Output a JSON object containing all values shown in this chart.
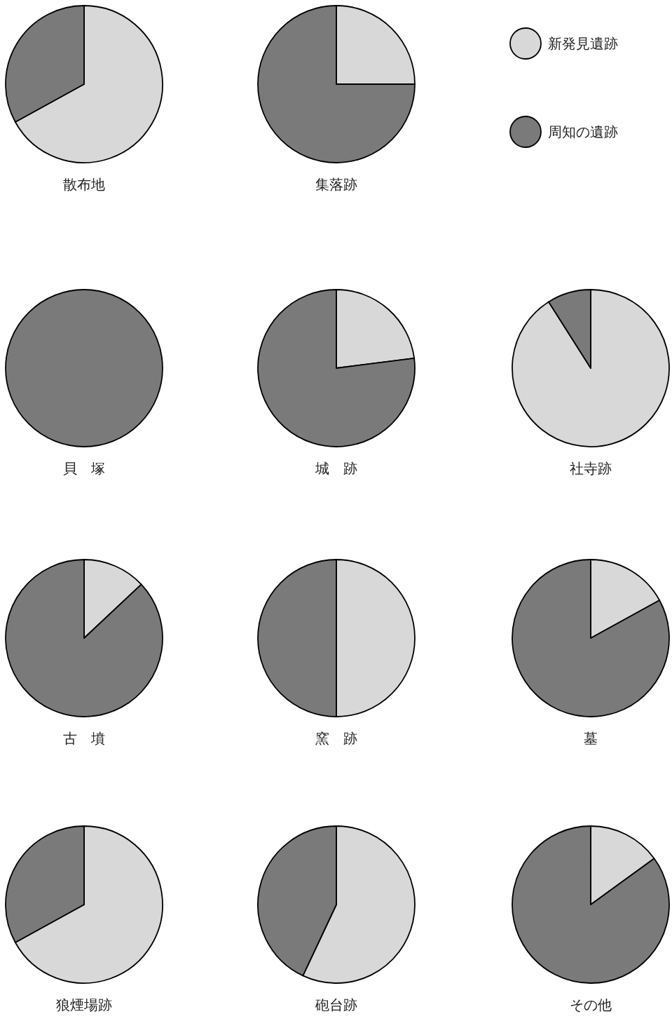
{
  "chart_data": [
    {
      "type": "pie",
      "title": "散布地",
      "categories": [
        "新発見遺跡",
        "周知の遺跡"
      ],
      "values": [
        67,
        33
      ],
      "colors": [
        "#d8d8d8",
        "#7a7a7a"
      ],
      "legend": "right"
    },
    {
      "type": "pie",
      "title": "集落跡",
      "values": [
        25,
        75
      ],
      "colors": [
        "#d8d8d8",
        "#7a7a7a"
      ]
    },
    {
      "type": "pie",
      "title": "貝　塚",
      "values": [
        0,
        100
      ],
      "colors": [
        "#d8d8d8",
        "#7a7a7a"
      ]
    },
    {
      "type": "pie",
      "title": "城　跡",
      "values": [
        23,
        77
      ],
      "colors": [
        "#d8d8d8",
        "#7a7a7a"
      ]
    },
    {
      "type": "pie",
      "title": "社寺跡",
      "values": [
        91,
        9
      ],
      "colors": [
        "#d8d8d8",
        "#7a7a7a"
      ]
    },
    {
      "type": "pie",
      "title": "古　墳",
      "values": [
        13,
        87
      ],
      "colors": [
        "#d8d8d8",
        "#7a7a7a"
      ]
    },
    {
      "type": "pie",
      "title": "窯　跡",
      "values": [
        50,
        50
      ],
      "colors": [
        "#d8d8d8",
        "#7a7a7a"
      ]
    },
    {
      "type": "pie",
      "title": "墓",
      "values": [
        17,
        83
      ],
      "colors": [
        "#d8d8d8",
        "#7a7a7a"
      ]
    },
    {
      "type": "pie",
      "title": "狼煙場跡",
      "values": [
        67,
        33
      ],
      "colors": [
        "#d8d8d8",
        "#7a7a7a"
      ]
    },
    {
      "type": "pie",
      "title": "砲台跡",
      "values": [
        57,
        43
      ],
      "colors": [
        "#d8d8d8",
        "#7a7a7a"
      ]
    },
    {
      "type": "pie",
      "title": "その他",
      "values": [
        15,
        85
      ],
      "colors": [
        "#d8d8d8",
        "#7a7a7a"
      ]
    }
  ]
}
